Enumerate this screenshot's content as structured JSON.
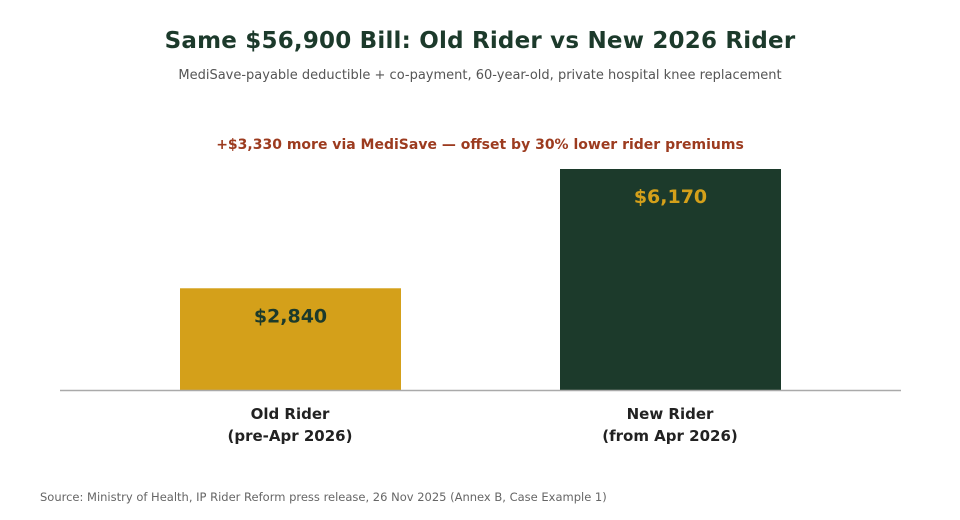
{
  "chart_data": {
    "type": "bar",
    "title": "Same $56,900 Bill: Old Rider vs New 2026 Rider",
    "subtitle": "MediSave-payable deductible + co-payment, 60-year-old, private hospital knee replacement",
    "annotation": "+$3,330 more via MediSave — offset by 30% lower rider premiums",
    "categories": [
      [
        "Old Rider",
        "(pre-Apr 2026)"
      ],
      [
        "New Rider",
        "(from Apr 2026)"
      ]
    ],
    "values": [
      2840,
      6170
    ],
    "data_labels": [
      "$2,840",
      "$6,170"
    ],
    "colors": [
      "#d4a01a",
      "#1c3a2b"
    ],
    "label_colors": [
      "#1c3a2b",
      "#d4a01a"
    ],
    "ylim": [
      0,
      6170
    ],
    "grid": false,
    "source": "Source: Ministry of Health, IP Rider Reform press release, 26 Nov 2025 (Annex B, Case Example 1)"
  }
}
